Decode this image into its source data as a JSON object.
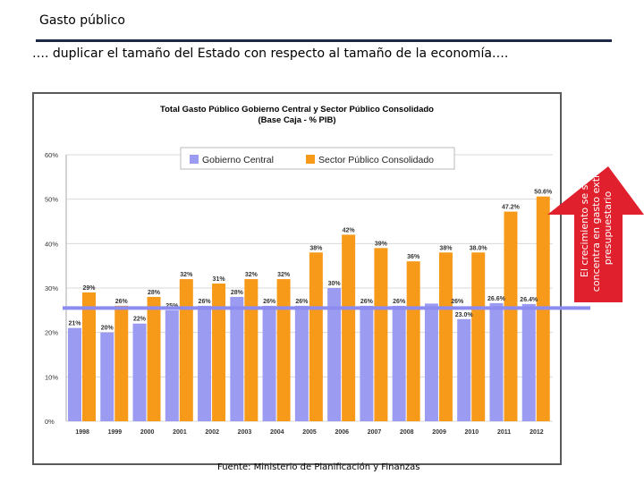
{
  "page": {
    "title": "Gasto público",
    "subtitle": "…. duplicar el tamaño del Estado con respecto al tamaño de la economía….",
    "source": "Fuente: Ministerio de Planificación y Finanzas",
    "callout": "El crecimiento se se concentra en gasto extra-presupuestario"
  },
  "colors": {
    "gobierno_central": "#9b9bf2",
    "sector_publico": "#f79a1a",
    "gridline": "#d9d9d9",
    "callout_fill": "#e0202c",
    "reference_line": "#8c8cf0"
  },
  "chart_data": {
    "type": "bar",
    "title": "Total Gasto Público Gobierno Central y Sector Público Consolidado",
    "subtitle": "(Base Caja - % PIB)",
    "categories": [
      "1998",
      "1999",
      "2000",
      "2001",
      "2002",
      "2003",
      "2004",
      "2005",
      "2006",
      "2007",
      "2008",
      "2009",
      "2010",
      "2011",
      "2012"
    ],
    "series": [
      {
        "name": "Gobierno Central",
        "values": [
          21,
          20,
          22,
          25,
          26,
          28,
          26,
          26,
          30,
          26,
          26,
          26.5,
          23.0,
          26.6,
          26.4
        ],
        "labels": [
          "21%",
          "20%",
          "22%",
          "25%",
          "26%",
          "28%",
          "26%",
          "26%",
          "30%",
          "26%",
          "26%",
          "",
          "23.0%",
          "26.6%",
          "26.4%"
        ]
      },
      {
        "name": "Sector Público Consolidado",
        "values": [
          29,
          26,
          28,
          32,
          31,
          32,
          32,
          38,
          42,
          39,
          36,
          38,
          38.0,
          47.2,
          50.6
        ],
        "labels": [
          "29%",
          "26%",
          "28%",
          "32%",
          "31%",
          "32%",
          "32%",
          "38%",
          "42%",
          "39%",
          "36%",
          "38%",
          "38.0%",
          "47.2%",
          "50.6%"
        ]
      }
    ],
    "yticks": [
      "0%",
      "10%",
      "20%",
      "30%",
      "40%",
      "50%",
      "60%"
    ],
    "ylim": [
      0,
      60
    ],
    "extra_label": "26%",
    "reference_line": 25.5,
    "legend_position": "top"
  }
}
